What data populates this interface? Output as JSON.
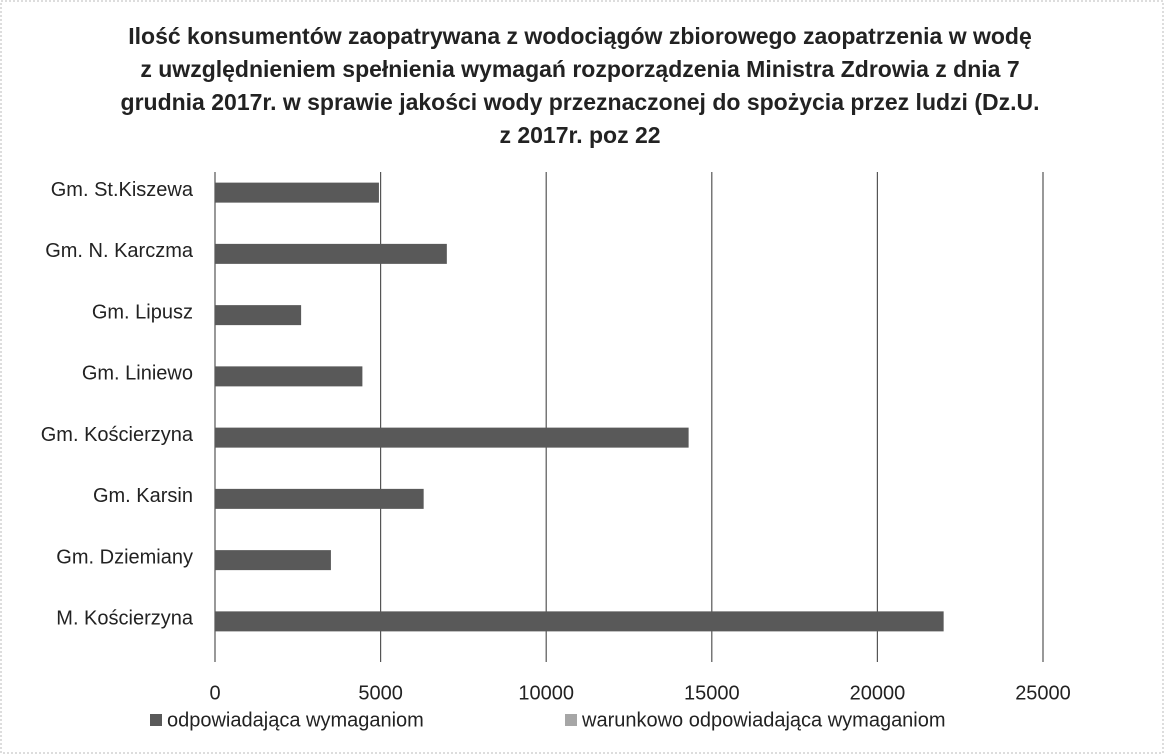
{
  "chart_data": {
    "type": "bar",
    "orientation": "horizontal",
    "title": "Ilość konsumentów zaopatrywana z wodociągów zbiorowego zaopatrzenia w wodę z uwzględnieniem spełnienia wymagań rozporządzenia Ministra Zdrowia z dnia 7 grudnia 2017r. w sprawie jakości wody przeznaczonej do spożycia przez ludzi (Dz.U. z 2017r. poz 22",
    "categories": [
      "Gm. St.Kiszewa",
      "Gm. N. Karczma",
      "Gm. Lipusz",
      "Gm. Liniewo",
      "Gm. Kościerzyna",
      "Gm. Karsin",
      "Gm. Dziemiany",
      "M. Kościerzyna"
    ],
    "series": [
      {
        "name": "odpowiadająca wymaganiom",
        "color": "#595959",
        "values": [
          4950,
          7000,
          2600,
          4450,
          14300,
          6300,
          3500,
          22000
        ]
      },
      {
        "name": "warunkowo odpowiadająca wymaganiom",
        "color": "#a6a6a6",
        "values": [
          0,
          0,
          0,
          0,
          0,
          0,
          0,
          0
        ]
      }
    ],
    "xlim": [
      0,
      25000
    ],
    "xticks": [
      0,
      5000,
      10000,
      15000,
      20000,
      25000
    ],
    "grid": true,
    "legend": "bottom"
  }
}
